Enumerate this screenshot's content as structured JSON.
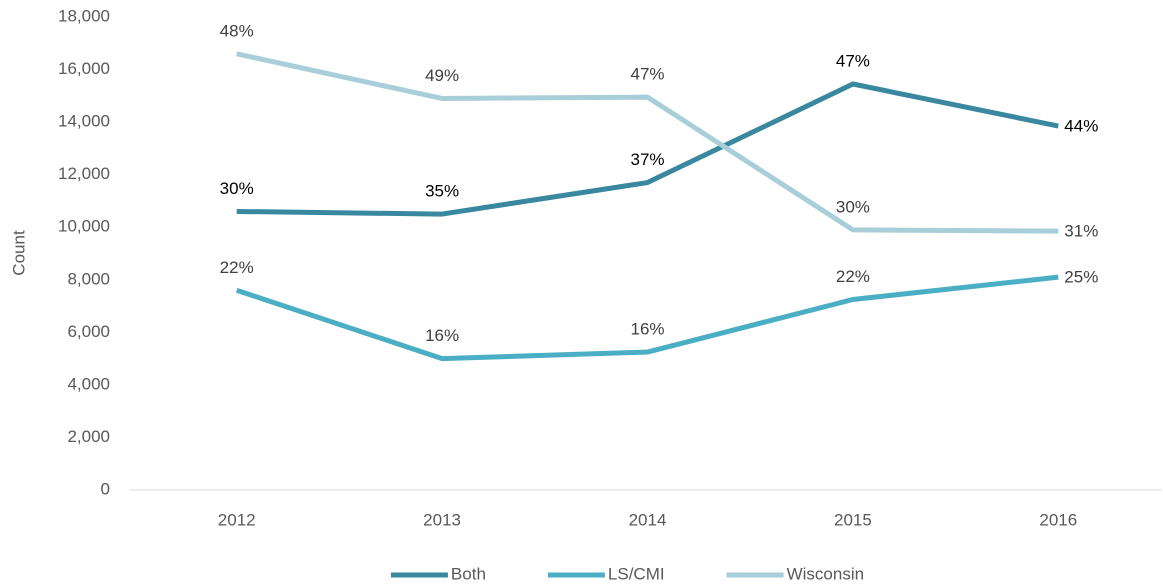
{
  "chart_data": {
    "type": "line",
    "y_label": "Count",
    "categories": [
      "2012",
      "2013",
      "2014",
      "2015",
      "2016"
    ],
    "series": [
      {
        "name": "Both",
        "color": "#3a87a0",
        "label_color": "#000000",
        "values": [
          10600,
          10500,
          11700,
          15450,
          13850
        ],
        "share_labels": [
          "30%",
          "35%",
          "37%",
          "47%",
          "44%"
        ]
      },
      {
        "name": "LS/CMI",
        "color": "#4aaec4",
        "label_color": "#404040",
        "values": [
          7600,
          5000,
          5250,
          7250,
          8100
        ],
        "share_labels": [
          "22%",
          "16%",
          "16%",
          "22%",
          "25%"
        ]
      },
      {
        "name": "Wisconsin",
        "color": "#a8ced9",
        "label_color": "#404040",
        "values": [
          16600,
          14900,
          14950,
          9900,
          9850
        ],
        "share_labels": [
          "48%",
          "49%",
          "47%",
          "30%",
          "31%"
        ]
      }
    ],
    "ylim": [
      0,
      18000
    ],
    "yticks": [
      0,
      {
        "value": 2000,
        "label": "2,000"
      },
      {
        "value": 4000,
        "label": "4,000"
      },
      {
        "value": 6000,
        "label": "6,000"
      },
      {
        "value": 8000,
        "label": "8,000"
      },
      {
        "value": 10000,
        "label": "10,000"
      },
      {
        "value": 12000,
        "label": "12,000"
      },
      {
        "value": 14000,
        "label": "14,000"
      },
      {
        "value": 16000,
        "label": "16,000"
      },
      {
        "value": 18000,
        "label": "18,000"
      }
    ],
    "grid": false,
    "legend": "bottom"
  }
}
